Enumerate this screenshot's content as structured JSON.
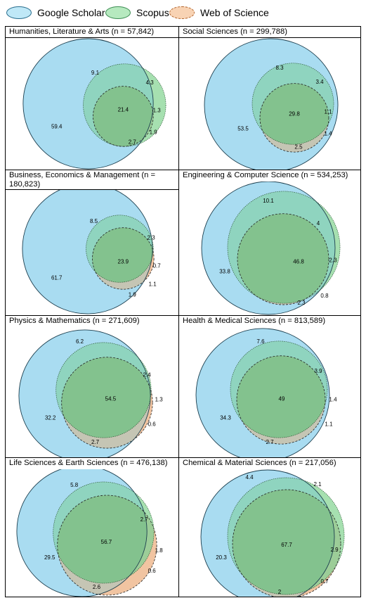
{
  "legend": [
    {
      "label": "Google Scholar",
      "fill": "#bfe8f7",
      "stroke": "#2a6f8f",
      "dash": false
    },
    {
      "label": "Scopus",
      "fill": "#b6e9bf",
      "stroke": "#3f8f55",
      "dash": false
    },
    {
      "label": "Web of Science",
      "fill": "#f8d3b4",
      "stroke": "#b0622a",
      "dash": true
    }
  ],
  "colors": {
    "gs_fill": "#a9dcf1",
    "scopus_fill": "#a6e0b0",
    "wos_fill": "#f1c4a1",
    "scopus_wos_fill": "#9ccd98",
    "gs_scopus_fill": "#8fd4bf",
    "gs_wos_fill": "#c5c5b4",
    "all_fill": "#83c28e"
  },
  "panels": [
    {
      "title": "Humanities, Literature & Arts (n = 57,842)",
      "values": {
        "gs_only": "59.4",
        "gs_scopus": "9.1",
        "scopus_only": "4.3",
        "all": "21.4",
        "scopus_wos": "1.3",
        "wos_only": "1.9",
        "gs_wos": "2.7"
      }
    },
    {
      "title": "Social Sciences (n = 299,788)",
      "values": {
        "gs_only": "53.5",
        "gs_scopus": "8.3",
        "scopus_only": "3.4",
        "all": "29.8",
        "scopus_wos": "1.1",
        "wos_only": "1.4",
        "gs_wos": "2.5"
      }
    },
    {
      "title": "Business, Economics & Management (n = 180,823)",
      "values": {
        "gs_only": "61.7",
        "gs_scopus": "8.5",
        "scopus_only": "2.3",
        "all": "23.9",
        "scopus_wos": "0.7",
        "wos_only": "1.1",
        "gs_wos": "1.9"
      }
    },
    {
      "title": "Engineering & Computer Science (n = 534,253)",
      "values": {
        "gs_only": "33.8",
        "gs_scopus": "10.1",
        "scopus_only": "4",
        "all": "46.8",
        "scopus_wos": "2.3",
        "wos_only": "0.8",
        "gs_wos": "2.3"
      }
    },
    {
      "title": "Physics & Mathematics (n = 271,609)",
      "values": {
        "gs_only": "32.2",
        "gs_scopus": "6.2",
        "scopus_only": "2.4",
        "all": "54.5",
        "scopus_wos": "1.3",
        "wos_only": "0.6",
        "gs_wos": "2.7"
      }
    },
    {
      "title": "Health & Medical Sciences (n = 813,589)",
      "values": {
        "gs_only": "34.3",
        "gs_scopus": "7.6",
        "scopus_only": "3.9",
        "all": "49",
        "scopus_wos": "1.4",
        "wos_only": "1.1",
        "gs_wos": "2.7"
      }
    },
    {
      "title": "Life Sciences & Earth Sciences (n = 476,138)",
      "values": {
        "gs_only": "29.5",
        "gs_scopus": "5.8",
        "scopus_only": "2.7",
        "all": "56.7",
        "scopus_wos": "1.8",
        "wos_only": "0.6",
        "gs_wos": "2.6"
      }
    },
    {
      "title": "Chemical & Material Sciences (n = 217,056)",
      "values": {
        "gs_only": "20.3",
        "gs_scopus": "4.4",
        "scopus_only": "2.1",
        "all": "67.7",
        "scopus_wos": "2.9",
        "wos_only": "0.7",
        "gs_wos": "2"
      }
    }
  ]
}
